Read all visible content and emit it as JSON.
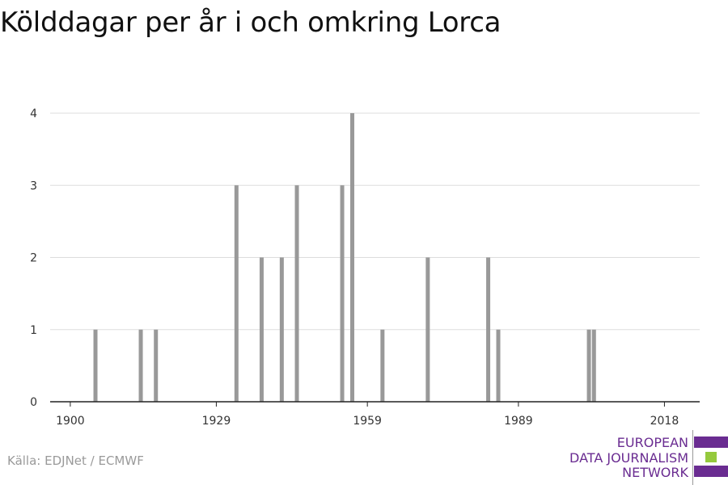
{
  "title": "Kölddagar per år i och omkring Lorca",
  "source": "Källa: EDJNet / ECMWF",
  "logo": {
    "lines": [
      "EUROPEAN",
      "DATA JOURNALISM",
      "NETWORK"
    ],
    "colors": {
      "purple": "#6a2c91",
      "green": "#95c93d"
    }
  },
  "chart_data": {
    "type": "bar",
    "title": "Kölddagar per år i och omkring Lorca",
    "xlabel": "",
    "ylabel": "",
    "xlim": [
      1896,
      2025
    ],
    "ylim": [
      0,
      4
    ],
    "x_ticks": [
      1900,
      1929,
      1959,
      1989,
      2018
    ],
    "y_ticks": [
      0,
      1,
      2,
      3,
      4
    ],
    "grid": true,
    "bar_color": "#999999",
    "x": [
      1905,
      1914,
      1917,
      1933,
      1938,
      1942,
      1945,
      1954,
      1956,
      1962,
      1971,
      1983,
      1985,
      2003,
      2004
    ],
    "values": [
      1,
      1,
      1,
      3,
      2,
      2,
      3,
      3,
      4,
      1,
      2,
      2,
      1,
      1,
      1
    ]
  }
}
